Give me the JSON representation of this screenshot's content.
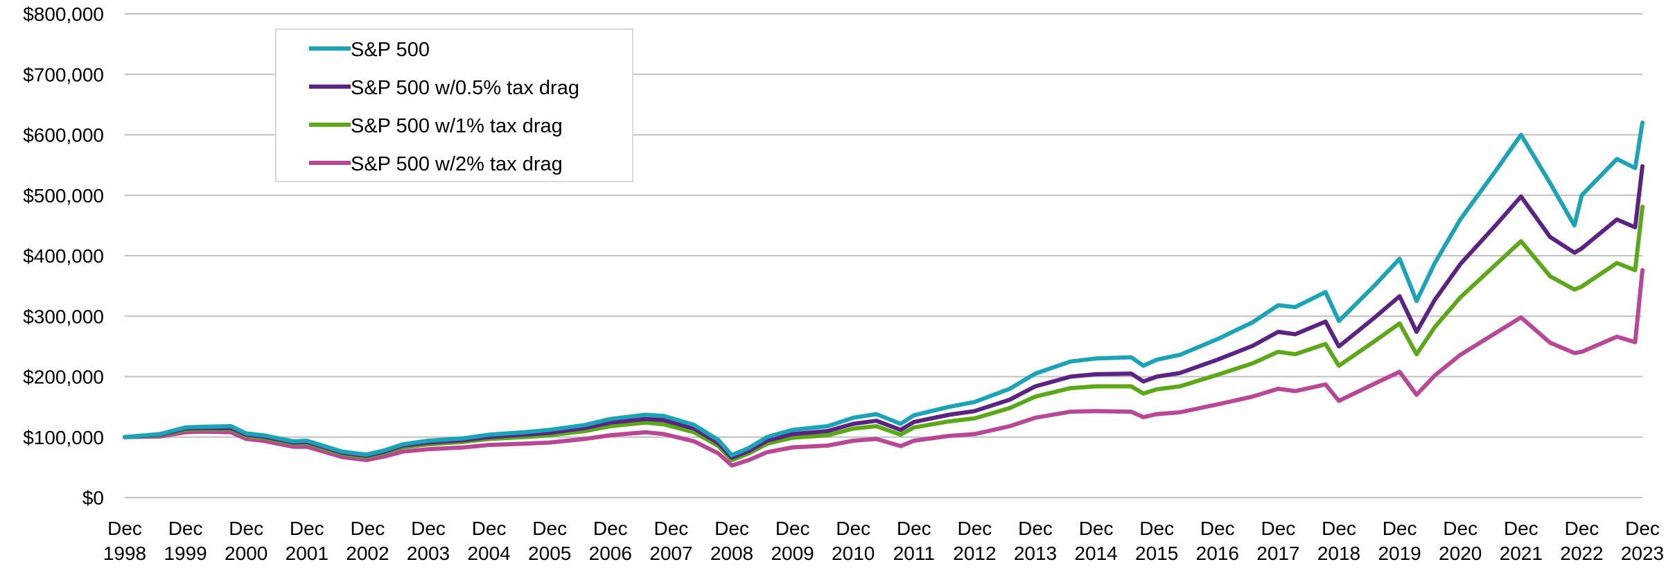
{
  "chart_data": {
    "type": "line",
    "title": "",
    "xlabel": "",
    "ylabel": "",
    "ylim": [
      0,
      800000
    ],
    "y_ticks": [
      0,
      100000,
      200000,
      300000,
      400000,
      500000,
      600000,
      700000,
      800000
    ],
    "y_tick_labels": [
      "$0",
      "$100,000",
      "$200,000",
      "$300,000",
      "$400,000",
      "$500,000",
      "$600,000",
      "$700,000",
      "$800,000"
    ],
    "x_range": [
      1998.92,
      2023.92
    ],
    "x_ticks": [
      {
        "line1": "Dec",
        "line2": "1998"
      },
      {
        "line1": "Dec",
        "line2": "1999"
      },
      {
        "line1": "Dec",
        "line2": "2000"
      },
      {
        "line1": "Dec",
        "line2": "2001"
      },
      {
        "line1": "Dec",
        "line2": "2002"
      },
      {
        "line1": "Dec",
        "line2": "2003"
      },
      {
        "line1": "Dec",
        "line2": "2004"
      },
      {
        "line1": "Dec",
        "line2": "2005"
      },
      {
        "line1": "Dec",
        "line2": "2006"
      },
      {
        "line1": "Dec",
        "line2": "2007"
      },
      {
        "line1": "Dec",
        "line2": "2008"
      },
      {
        "line1": "Dec",
        "line2": "2009"
      },
      {
        "line1": "Dec",
        "line2": "2010"
      },
      {
        "line1": "Dec",
        "line2": "2011"
      },
      {
        "line1": "Dec",
        "line2": "2012"
      },
      {
        "line1": "Dec",
        "line2": "2013"
      },
      {
        "line1": "Dec",
        "line2": "2014"
      },
      {
        "line1": "Dec",
        "line2": "2015"
      },
      {
        "line1": "Dec",
        "line2": "2016"
      },
      {
        "line1": "Dec",
        "line2": "2017"
      },
      {
        "line1": "Dec",
        "line2": "2018"
      },
      {
        "line1": "Dec",
        "line2": "2019"
      },
      {
        "line1": "Dec",
        "line2": "2020"
      },
      {
        "line1": "Dec",
        "line2": "2021"
      },
      {
        "line1": "Dec",
        "line2": "2022"
      },
      {
        "line1": "Dec",
        "line2": "2023"
      }
    ],
    "grid": true,
    "legend_position": "top-left",
    "x": [
      1998.92,
      1999.5,
      1999.92,
      2000.2,
      2000.67,
      2000.92,
      2001.2,
      2001.7,
      2001.92,
      2002.5,
      2002.9,
      2003.2,
      2003.5,
      2003.92,
      2004.5,
      2004.92,
      2005.5,
      2005.92,
      2006.5,
      2006.92,
      2007.5,
      2007.8,
      2008.3,
      2008.7,
      2008.92,
      2009.2,
      2009.5,
      2009.92,
      2010.5,
      2010.92,
      2011.3,
      2011.7,
      2011.92,
      2012.5,
      2012.92,
      2013.5,
      2013.92,
      2014.5,
      2014.92,
      2015.5,
      2015.7,
      2015.92,
      2016.3,
      2016.92,
      2017.5,
      2017.92,
      2018.2,
      2018.7,
      2018.92,
      2019.5,
      2019.92,
      2020.2,
      2020.5,
      2020.92,
      2021.5,
      2021.92,
      2022.4,
      2022.8,
      2022.92,
      2023.5,
      2023.8,
      2023.92
    ],
    "series": [
      {
        "name": "S&P 500",
        "color": "#1ba3b8",
        "values": [
          100000,
          105000,
          116000,
          117000,
          118000,
          106000,
          103000,
          93000,
          94000,
          76000,
          71000,
          78000,
          88000,
          94000,
          98000,
          104000,
          108000,
          112000,
          120000,
          130000,
          137000,
          135000,
          120000,
          95000,
          70000,
          82000,
          100000,
          112000,
          118000,
          132000,
          138000,
          122000,
          136000,
          150000,
          158000,
          180000,
          205000,
          225000,
          230000,
          232000,
          218000,
          228000,
          236000,
          262000,
          290000,
          318000,
          315000,
          340000,
          292000,
          350000,
          395000,
          325000,
          388000,
          460000,
          540000,
          600000,
          520000,
          450000,
          500000,
          560000,
          545000,
          620000
        ]
      },
      {
        "name": "S&P 500 w/0.5% tax drag",
        "color": "#5b2483",
        "values": [
          100000,
          104000,
          114000,
          115000,
          115000,
          104000,
          101000,
          91000,
          92000,
          74000,
          69000,
          76000,
          86000,
          91000,
          95000,
          100000,
          104000,
          107000,
          115000,
          124000,
          130000,
          128000,
          114000,
          90000,
          66000,
          77000,
          94000,
          105000,
          110000,
          122000,
          127000,
          112000,
          125000,
          137000,
          143000,
          162000,
          184000,
          200000,
          204000,
          205000,
          192000,
          200000,
          206000,
          228000,
          251000,
          274000,
          270000,
          291000,
          250000,
          297000,
          333000,
          274000,
          327000,
          386000,
          450000,
          498000,
          431000,
          405000,
          412000,
          460000,
          447000,
          548000
        ]
      },
      {
        "name": "S&P 500 w/1% tax drag",
        "color": "#5ba818",
        "values": [
          100000,
          103000,
          112000,
          113000,
          113000,
          102000,
          99000,
          89000,
          90000,
          72000,
          67000,
          74000,
          83000,
          88000,
          92000,
          97000,
          100000,
          103000,
          110000,
          118000,
          124000,
          121000,
          108000,
          85000,
          62000,
          73000,
          89000,
          99000,
          103000,
          114000,
          118000,
          104000,
          116000,
          126000,
          131000,
          148000,
          167000,
          181000,
          184000,
          184000,
          172000,
          179000,
          184000,
          203000,
          222000,
          241000,
          237000,
          254000,
          218000,
          258000,
          288000,
          237000,
          282000,
          331000,
          385000,
          424000,
          366000,
          344000,
          349000,
          388000,
          376000,
          481000
        ]
      },
      {
        "name": "S&P 500 w/2% tax drag",
        "color": "#b84796",
        "values": [
          100000,
          101000,
          108000,
          109000,
          108000,
          97000,
          94000,
          84000,
          84000,
          67000,
          62000,
          68000,
          76000,
          80000,
          83000,
          87000,
          89000,
          91000,
          97000,
          103000,
          108000,
          105000,
          93000,
          73000,
          53000,
          62000,
          75000,
          83000,
          86000,
          94000,
          97000,
          85000,
          94000,
          102000,
          105000,
          118000,
          132000,
          142000,
          143000,
          142000,
          133000,
          138000,
          141000,
          154000,
          167000,
          180000,
          176000,
          187000,
          160000,
          188000,
          208000,
          170000,
          202000,
          236000,
          272000,
          298000,
          256000,
          239000,
          241000,
          266000,
          257000,
          376000
        ]
      }
    ]
  }
}
